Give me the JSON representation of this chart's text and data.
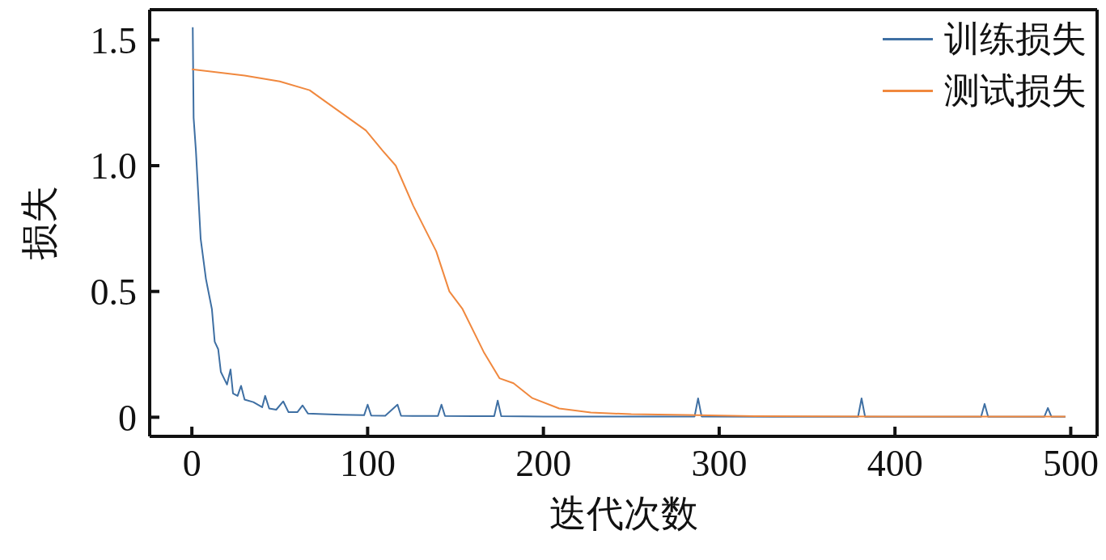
{
  "chart_data": {
    "type": "line",
    "xlabel": "迭代次数",
    "ylabel": "损失",
    "xlim": [
      -24,
      515
    ],
    "xticks": [
      0,
      100,
      200,
      300,
      400,
      500
    ],
    "ylim": [
      -0.076,
      1.62
    ],
    "yticks": [
      0,
      0.5,
      {
        "value": 1,
        "label": "1.0"
      },
      1.5
    ],
    "legend": "top right",
    "marker": "none",
    "line_style": "solid",
    "series": [
      {
        "name": "训练损失",
        "color": "#3e6fa3",
        "x": [
          0.5,
          1,
          2.3,
          5,
          8,
          11.4,
          13,
          15,
          16.5,
          20,
          22,
          23.4,
          26,
          28,
          30,
          35,
          40,
          41.7,
          44,
          48,
          52,
          55,
          60,
          63,
          66,
          75,
          85,
          98,
          100,
          102,
          110,
          117,
          119,
          130,
          140,
          142,
          144,
          160,
          172,
          174,
          176,
          200,
          250,
          286,
          288,
          290,
          330,
          379,
          381,
          383,
          420,
          449,
          451,
          453,
          485,
          487,
          489,
          497
        ],
        "values": [
          1.55,
          1.19,
          1.06,
          0.71,
          0.55,
          0.43,
          0.3,
          0.27,
          0.18,
          0.13,
          0.19,
          0.095,
          0.085,
          0.125,
          0.07,
          0.06,
          0.04,
          0.085,
          0.035,
          0.03,
          0.063,
          0.02,
          0.02,
          0.047,
          0.015,
          0.012,
          0.01,
          0.008,
          0.05,
          0.007,
          0.006,
          0.05,
          0.006,
          0.005,
          0.005,
          0.05,
          0.005,
          0.004,
          0.004,
          0.066,
          0.004,
          0.003,
          0.003,
          0.003,
          0.075,
          0.003,
          0.002,
          0.002,
          0.075,
          0.002,
          0.002,
          0.002,
          0.053,
          0.002,
          0.002,
          0.037,
          0.002,
          0.002
        ]
      },
      {
        "name": "测试损失",
        "color": "#f0883e",
        "x": [
          0,
          30,
          50,
          67,
          75,
          99,
          108.5,
          116,
          126,
          139,
          146.5,
          154,
          166,
          175,
          183,
          193.7,
          209,
          227,
          250,
          281,
          320,
          400,
          497
        ],
        "values": [
          1.383,
          1.358,
          1.335,
          1.3,
          1.26,
          1.14,
          1.06,
          1.0,
          0.84,
          0.66,
          0.5,
          0.43,
          0.26,
          0.155,
          0.135,
          0.076,
          0.035,
          0.019,
          0.012,
          0.009,
          0.004,
          0.003,
          0.003
        ]
      }
    ]
  }
}
